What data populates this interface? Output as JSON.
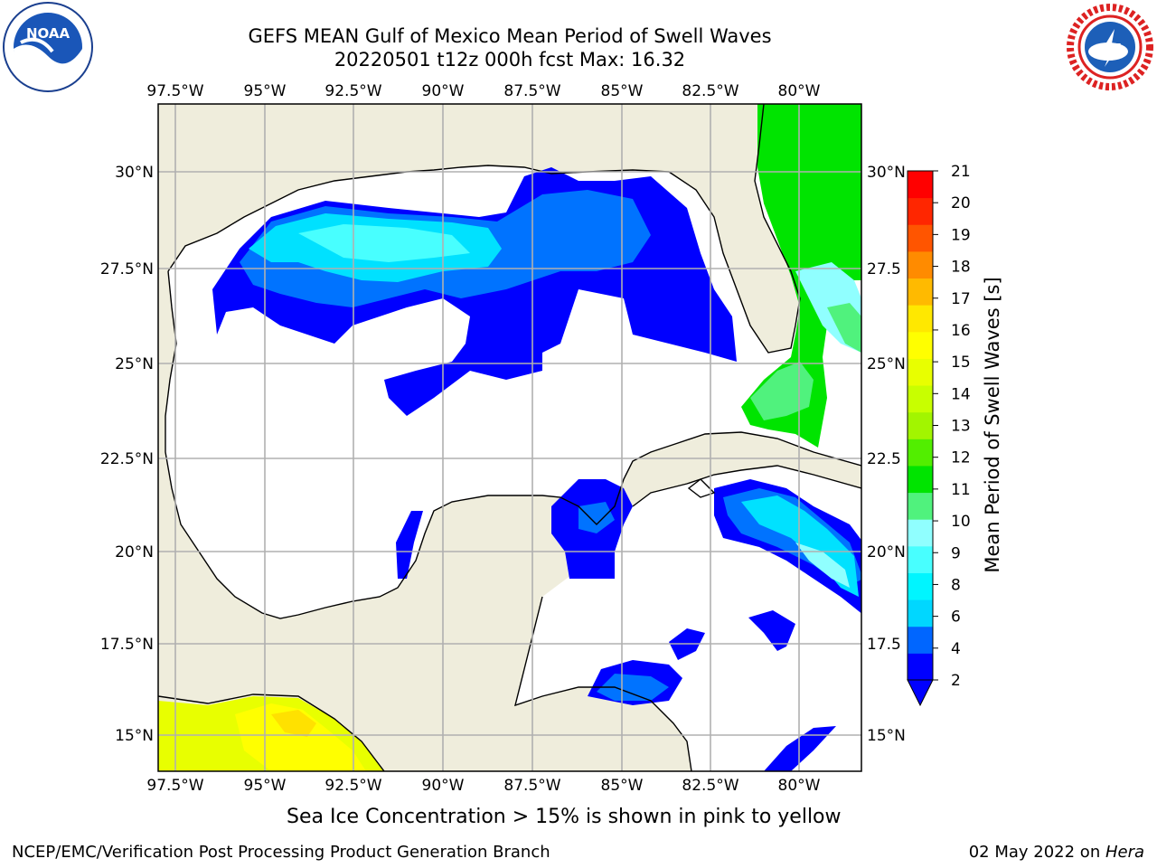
{
  "header": {
    "title_line1": "GEFS MEAN Gulf of Mexico Mean Period of Swell Waves",
    "title_line2": "20220501 t12z 000h fcst   Max: 16.32"
  },
  "logos": {
    "left": "noaa-logo",
    "right": "nws-logo"
  },
  "map": {
    "lon_labels": [
      "97.5°W",
      "95°W",
      "92.5°W",
      "90°W",
      "87.5°W",
      "85°W",
      "82.5°W",
      "80°W"
    ],
    "lat_labels_left": [
      "30°N",
      "27.5°N",
      "25°N",
      "22.5°N",
      "20°N",
      "17.5°N",
      "15°N"
    ],
    "lat_labels_right": [
      "30°N",
      "27.5",
      "25°N",
      "22.5",
      "20°N",
      "17.5",
      "15°N"
    ],
    "land_color": "#efeddc",
    "grid_color": "#b0b0b0"
  },
  "colorbar": {
    "label": "Mean Period of Swell Waves [s]",
    "ticks": [
      "2",
      "4",
      "6",
      "8",
      "9",
      "10",
      "11",
      "12",
      "13",
      "14",
      "15",
      "16",
      "17",
      "18",
      "19",
      "20",
      "21"
    ],
    "colors": [
      "#0000ff",
      "#0066ff",
      "#00d7ff",
      "#00f5ff",
      "#48ffff",
      "#90ffff",
      "#50f27d",
      "#00e400",
      "#52ee00",
      "#a2f500",
      "#c8ff00",
      "#e8ff00",
      "#ffff00",
      "#ffe800",
      "#ffba00",
      "#ff8b00",
      "#ff5500",
      "#ff2600",
      "#ff0000"
    ]
  },
  "caption": "Sea Ice Concentration > 15% is shown in pink to yellow",
  "footer": {
    "left": "NCEP/EMC/Verification Post Processing Product Generation Branch",
    "right_prefix": "02 May 2022 on ",
    "right_host": "Hera"
  }
}
